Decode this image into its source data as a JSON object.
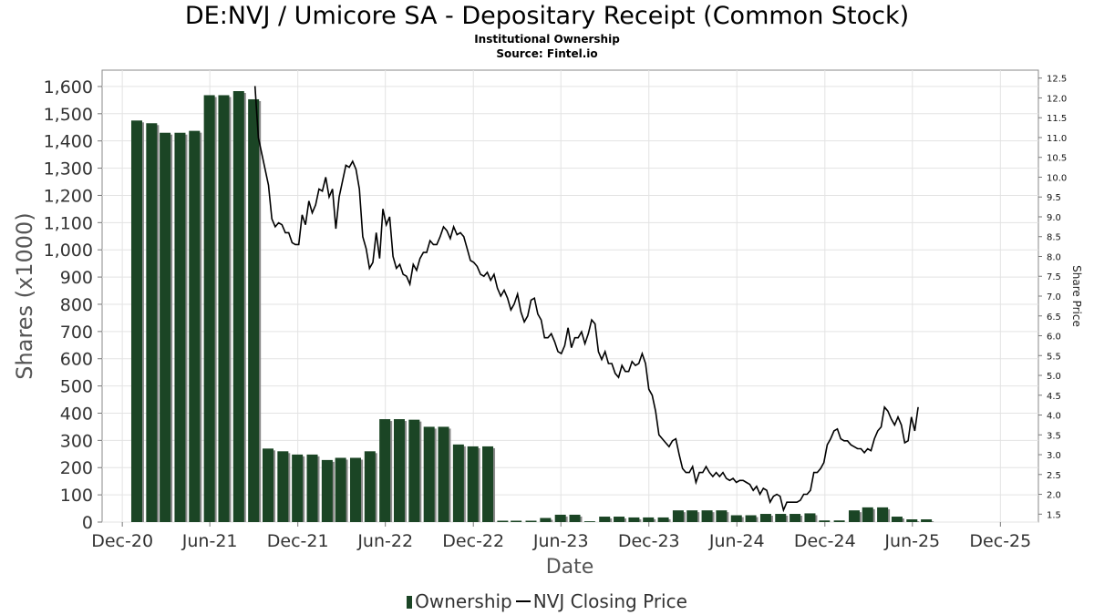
{
  "chart_data": {
    "type": "bar+line",
    "title": "DE:NVJ / Umicore SA - Depositary Receipt (Common Stock)",
    "subtitle": "Institutional Ownership",
    "source": "Source: Fintel.io",
    "xlabel": "Date",
    "ylabel": "Shares (x1000)",
    "y2label": "Share Price",
    "x_ticks": [
      "Dec-20",
      "Jun-21",
      "Dec-21",
      "Jun-22",
      "Dec-22",
      "Jun-23",
      "Dec-23",
      "Jun-24",
      "Dec-24",
      "Jun-25",
      "Dec-25"
    ],
    "y_ticks": [
      "0",
      "100",
      "200",
      "300",
      "400",
      "500",
      "600",
      "700",
      "800",
      "900",
      "1,000",
      "1,100",
      "1,200",
      "1,300",
      "1,400",
      "1,500",
      "1,600"
    ],
    "y2_ticks": [
      "1.5",
      "2.0",
      "2.5",
      "3.0",
      "3.5",
      "4.0",
      "4.5",
      "5.0",
      "5.5",
      "6.0",
      "6.5",
      "7.0",
      "7.5",
      "8.0",
      "8.5",
      "9.0",
      "9.5",
      "10.0",
      "10.5",
      "11.0",
      "11.5",
      "12.0",
      "12.5"
    ],
    "ylim": [
      0,
      1660
    ],
    "y2lim": [
      1.3,
      12.7
    ],
    "grid": true,
    "legend_position": "bottom",
    "series": [
      {
        "name": "Ownership",
        "type": "bar",
        "color": "#1b4525",
        "points": [
          [
            "2020-12-31",
            1475
          ],
          [
            "2021-01-31",
            1465
          ],
          [
            "2021-02-28",
            1430
          ],
          [
            "2021-03-31",
            1430
          ],
          [
            "2021-04-30",
            1437
          ],
          [
            "2021-05-31",
            1568
          ],
          [
            "2021-06-30",
            1568
          ],
          [
            "2021-07-31",
            1583
          ],
          [
            "2021-08-31",
            1553
          ],
          [
            "2021-09-30",
            270
          ],
          [
            "2021-10-31",
            260
          ],
          [
            "2021-11-30",
            248
          ],
          [
            "2021-12-31",
            248
          ],
          [
            "2022-01-31",
            228
          ],
          [
            "2022-02-28",
            236
          ],
          [
            "2022-03-31",
            236
          ],
          [
            "2022-04-30",
            260
          ],
          [
            "2022-05-31",
            378
          ],
          [
            "2022-06-30",
            378
          ],
          [
            "2022-07-31",
            376
          ],
          [
            "2022-08-31",
            350
          ],
          [
            "2022-09-30",
            350
          ],
          [
            "2022-10-31",
            285
          ],
          [
            "2022-11-30",
            278
          ],
          [
            "2022-12-31",
            278
          ],
          [
            "2023-01-31",
            5
          ],
          [
            "2023-02-28",
            5
          ],
          [
            "2023-03-31",
            5
          ],
          [
            "2023-04-30",
            15
          ],
          [
            "2023-05-31",
            27
          ],
          [
            "2023-06-30",
            27
          ],
          [
            "2023-07-31",
            3
          ],
          [
            "2023-08-31",
            20
          ],
          [
            "2023-09-30",
            20
          ],
          [
            "2023-10-31",
            17
          ],
          [
            "2023-11-30",
            17
          ],
          [
            "2023-12-31",
            17
          ],
          [
            "2024-01-31",
            43
          ],
          [
            "2024-02-29",
            43
          ],
          [
            "2024-03-31",
            43
          ],
          [
            "2024-04-30",
            43
          ],
          [
            "2024-05-31",
            25
          ],
          [
            "2024-06-30",
            25
          ],
          [
            "2024-07-31",
            30
          ],
          [
            "2024-08-31",
            30
          ],
          [
            "2024-09-30",
            30
          ],
          [
            "2024-10-31",
            32
          ],
          [
            "2024-11-30",
            6
          ],
          [
            "2024-12-31",
            6
          ],
          [
            "2025-01-31",
            43
          ],
          [
            "2025-02-28",
            54
          ],
          [
            "2025-03-31",
            54
          ],
          [
            "2025-04-30",
            20
          ],
          [
            "2025-05-31",
            10
          ],
          [
            "2025-06-30",
            10
          ]
        ]
      },
      {
        "name": "NVJ Closing Price",
        "type": "line",
        "color": "#000000",
        "axis": "right",
        "points": [
          [
            "2021-09-03",
            12.3
          ],
          [
            "2021-09-10",
            11.0
          ],
          [
            "2021-09-17",
            10.6
          ],
          [
            "2021-09-24",
            10.2
          ],
          [
            "2021-10-01",
            9.8
          ],
          [
            "2021-10-08",
            8.95
          ],
          [
            "2021-10-15",
            8.75
          ],
          [
            "2021-10-22",
            8.85
          ],
          [
            "2021-10-29",
            8.8
          ],
          [
            "2021-11-05",
            8.6
          ],
          [
            "2021-11-12",
            8.6
          ],
          [
            "2021-11-19",
            8.35
          ],
          [
            "2021-11-26",
            8.3
          ],
          [
            "2021-12-03",
            8.3
          ],
          [
            "2021-12-10",
            9.05
          ],
          [
            "2021-12-17",
            8.8
          ],
          [
            "2021-12-24",
            9.4
          ],
          [
            "2021-12-31",
            9.1
          ],
          [
            "2022-01-07",
            9.3
          ],
          [
            "2022-01-14",
            9.7
          ],
          [
            "2022-01-21",
            9.65
          ],
          [
            "2022-01-28",
            10.0
          ],
          [
            "2022-02-04",
            9.5
          ],
          [
            "2022-02-11",
            9.7
          ],
          [
            "2022-02-18",
            8.7
          ],
          [
            "2022-02-25",
            9.5
          ],
          [
            "2022-03-04",
            9.9
          ],
          [
            "2022-03-11",
            10.3
          ],
          [
            "2022-03-18",
            10.25
          ],
          [
            "2022-03-25",
            10.4
          ],
          [
            "2022-04-01",
            10.2
          ],
          [
            "2022-04-08",
            9.7
          ],
          [
            "2022-04-15",
            8.5
          ],
          [
            "2022-04-22",
            8.2
          ],
          [
            "2022-04-29",
            7.7
          ],
          [
            "2022-05-06",
            7.85
          ],
          [
            "2022-05-13",
            8.6
          ],
          [
            "2022-05-20",
            7.95
          ],
          [
            "2022-05-27",
            9.2
          ],
          [
            "2022-06-03",
            8.8
          ],
          [
            "2022-06-10",
            9.0
          ],
          [
            "2022-06-17",
            8.0
          ],
          [
            "2022-06-24",
            7.7
          ],
          [
            "2022-07-01",
            7.8
          ],
          [
            "2022-07-08",
            7.55
          ],
          [
            "2022-07-15",
            7.5
          ],
          [
            "2022-07-22",
            7.3
          ],
          [
            "2022-07-29",
            7.8
          ],
          [
            "2022-08-05",
            7.65
          ],
          [
            "2022-08-12",
            7.95
          ],
          [
            "2022-08-19",
            8.1
          ],
          [
            "2022-08-26",
            8.1
          ],
          [
            "2022-09-02",
            8.4
          ],
          [
            "2022-09-09",
            8.3
          ],
          [
            "2022-09-16",
            8.3
          ],
          [
            "2022-09-23",
            8.5
          ],
          [
            "2022-09-30",
            8.75
          ],
          [
            "2022-10-07",
            8.65
          ],
          [
            "2022-10-14",
            8.45
          ],
          [
            "2022-10-21",
            8.75
          ],
          [
            "2022-10-28",
            8.55
          ],
          [
            "2022-11-04",
            8.6
          ],
          [
            "2022-11-11",
            8.5
          ],
          [
            "2022-11-18",
            8.2
          ],
          [
            "2022-11-25",
            7.9
          ],
          [
            "2022-12-02",
            7.85
          ],
          [
            "2022-12-09",
            7.75
          ],
          [
            "2022-12-16",
            7.55
          ],
          [
            "2022-12-23",
            7.5
          ],
          [
            "2022-12-30",
            7.6
          ],
          [
            "2023-01-06",
            7.4
          ],
          [
            "2023-01-13",
            7.55
          ],
          [
            "2023-01-20",
            7.2
          ],
          [
            "2023-01-27",
            7.0
          ],
          [
            "2023-02-03",
            7.15
          ],
          [
            "2023-02-10",
            6.95
          ],
          [
            "2023-02-17",
            6.65
          ],
          [
            "2023-02-24",
            6.8
          ],
          [
            "2023-03-03",
            7.05
          ],
          [
            "2023-03-10",
            6.6
          ],
          [
            "2023-03-17",
            6.35
          ],
          [
            "2023-03-24",
            6.5
          ],
          [
            "2023-03-31",
            6.9
          ],
          [
            "2023-04-07",
            6.95
          ],
          [
            "2023-04-14",
            6.55
          ],
          [
            "2023-04-21",
            6.4
          ],
          [
            "2023-04-28",
            5.95
          ],
          [
            "2023-05-05",
            5.95
          ],
          [
            "2023-05-12",
            6.05
          ],
          [
            "2023-05-19",
            5.85
          ],
          [
            "2023-05-26",
            5.6
          ],
          [
            "2023-06-02",
            5.55
          ],
          [
            "2023-06-09",
            5.75
          ],
          [
            "2023-06-16",
            6.2
          ],
          [
            "2023-06-23",
            5.7
          ],
          [
            "2023-06-30",
            5.95
          ],
          [
            "2023-07-07",
            5.95
          ],
          [
            "2023-07-14",
            6.1
          ],
          [
            "2023-07-21",
            5.8
          ],
          [
            "2023-07-28",
            6.05
          ],
          [
            "2023-08-04",
            6.4
          ],
          [
            "2023-08-11",
            6.3
          ],
          [
            "2023-08-18",
            5.6
          ],
          [
            "2023-08-25",
            5.4
          ],
          [
            "2023-09-01",
            5.6
          ],
          [
            "2023-09-08",
            5.3
          ],
          [
            "2023-09-15",
            5.3
          ],
          [
            "2023-09-22",
            5.05
          ],
          [
            "2023-09-29",
            4.95
          ],
          [
            "2023-10-06",
            5.25
          ],
          [
            "2023-10-13",
            5.1
          ],
          [
            "2023-10-20",
            5.1
          ],
          [
            "2023-10-27",
            5.35
          ],
          [
            "2023-11-03",
            5.25
          ],
          [
            "2023-11-10",
            5.3
          ],
          [
            "2023-11-17",
            5.55
          ],
          [
            "2023-11-24",
            5.3
          ],
          [
            "2023-12-01",
            4.65
          ],
          [
            "2023-12-08",
            4.5
          ],
          [
            "2023-12-15",
            4.1
          ],
          [
            "2023-12-22",
            3.5
          ],
          [
            "2023-12-29",
            3.4
          ],
          [
            "2024-01-05",
            3.3
          ],
          [
            "2024-01-12",
            3.2
          ],
          [
            "2024-01-19",
            3.35
          ],
          [
            "2024-01-26",
            3.4
          ],
          [
            "2024-02-02",
            3.0
          ],
          [
            "2024-02-09",
            2.65
          ],
          [
            "2024-02-16",
            2.55
          ],
          [
            "2024-02-23",
            2.55
          ],
          [
            "2024-03-01",
            2.7
          ],
          [
            "2024-03-08",
            2.3
          ],
          [
            "2024-03-15",
            2.55
          ],
          [
            "2024-03-22",
            2.55
          ],
          [
            "2024-03-29",
            2.7
          ],
          [
            "2024-04-05",
            2.55
          ],
          [
            "2024-04-12",
            2.45
          ],
          [
            "2024-04-19",
            2.55
          ],
          [
            "2024-04-26",
            2.45
          ],
          [
            "2024-05-03",
            2.55
          ],
          [
            "2024-05-10",
            2.4
          ],
          [
            "2024-05-17",
            2.35
          ],
          [
            "2024-05-24",
            2.4
          ],
          [
            "2024-05-31",
            2.3
          ],
          [
            "2024-06-07",
            2.35
          ],
          [
            "2024-06-14",
            2.35
          ],
          [
            "2024-06-21",
            2.3
          ],
          [
            "2024-06-28",
            2.25
          ],
          [
            "2024-07-05",
            2.1
          ],
          [
            "2024-07-12",
            2.2
          ],
          [
            "2024-07-19",
            2.0
          ],
          [
            "2024-07-26",
            2.15
          ],
          [
            "2024-08-02",
            2.1
          ],
          [
            "2024-08-09",
            1.8
          ],
          [
            "2024-08-16",
            1.95
          ],
          [
            "2024-08-23",
            2.0
          ],
          [
            "2024-08-30",
            1.95
          ],
          [
            "2024-09-06",
            1.6
          ],
          [
            "2024-09-13",
            1.8
          ],
          [
            "2024-09-20",
            1.8
          ],
          [
            "2024-09-27",
            1.8
          ],
          [
            "2024-10-04",
            1.8
          ],
          [
            "2024-10-11",
            1.85
          ],
          [
            "2024-10-18",
            2.0
          ],
          [
            "2024-10-25",
            2.0
          ],
          [
            "2024-11-01",
            2.1
          ],
          [
            "2024-11-08",
            2.55
          ],
          [
            "2024-11-15",
            2.55
          ],
          [
            "2024-11-22",
            2.65
          ],
          [
            "2024-11-29",
            2.8
          ],
          [
            "2024-12-06",
            3.25
          ],
          [
            "2024-12-13",
            3.4
          ],
          [
            "2024-12-20",
            3.6
          ],
          [
            "2024-12-27",
            3.65
          ],
          [
            "2025-01-03",
            3.4
          ],
          [
            "2025-01-10",
            3.35
          ],
          [
            "2025-01-17",
            3.35
          ],
          [
            "2025-01-24",
            3.25
          ],
          [
            "2025-01-31",
            3.2
          ],
          [
            "2025-02-07",
            3.15
          ],
          [
            "2025-02-14",
            3.15
          ],
          [
            "2025-02-21",
            3.05
          ],
          [
            "2025-02-28",
            3.15
          ],
          [
            "2025-03-07",
            3.1
          ],
          [
            "2025-03-14",
            3.4
          ],
          [
            "2025-03-21",
            3.6
          ],
          [
            "2025-03-28",
            3.7
          ],
          [
            "2025-04-04",
            4.2
          ],
          [
            "2025-04-11",
            4.1
          ],
          [
            "2025-04-18",
            3.9
          ],
          [
            "2025-04-25",
            3.75
          ],
          [
            "2025-05-02",
            3.95
          ],
          [
            "2025-05-09",
            3.75
          ],
          [
            "2025-05-16",
            3.3
          ],
          [
            "2025-05-23",
            3.35
          ],
          [
            "2025-05-30",
            3.95
          ],
          [
            "2025-06-06",
            3.6
          ],
          [
            "2025-06-13",
            4.2
          ]
        ]
      }
    ]
  }
}
